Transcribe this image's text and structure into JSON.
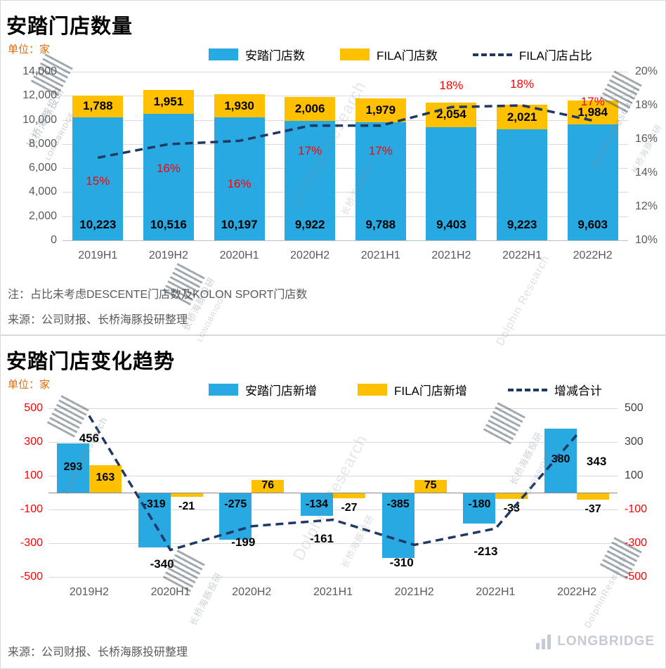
{
  "chart_data": [
    {
      "id": "store-count",
      "type": "bar",
      "variant": "stacked-with-line",
      "title": "安踏门店数量",
      "unit_label": "单位：家",
      "categories": [
        "2019H1",
        "2019H2",
        "2020H1",
        "2020H2",
        "2021H1",
        "2021H2",
        "2022H1",
        "2022H2"
      ],
      "series": [
        {
          "name": "安踏门店数",
          "type": "bar",
          "color": "#29A9E1",
          "values": [
            10223,
            10516,
            10197,
            9922,
            9788,
            9403,
            9223,
            9603
          ],
          "labels": [
            "10,223",
            "10,516",
            "10,197",
            "9,922",
            "9,788",
            "9,403",
            "9,223",
            "9,603"
          ],
          "label_color": "#000000"
        },
        {
          "name": "FILA门店数",
          "type": "bar",
          "color": "#FFC000",
          "values": [
            1788,
            1951,
            1930,
            2006,
            1979,
            2054,
            2021,
            1984
          ],
          "labels": [
            "1,788",
            "1,951",
            "1,930",
            "2,006",
            "1,979",
            "2,054",
            "2,021",
            "1,984"
          ],
          "label_color": "#000000"
        },
        {
          "name": "FILA门店占比",
          "type": "line",
          "axis": "right",
          "dash": true,
          "color": "#1F3864",
          "values": [
            14.9,
            15.7,
            15.9,
            16.8,
            16.8,
            17.9,
            18.0,
            17.1
          ],
          "labels": [
            "15%",
            "16%",
            "16%",
            "17%",
            "17%",
            "18%",
            "18%",
            "17%"
          ],
          "label_color": "#FF0000"
        }
      ],
      "left_axis": {
        "min": 0,
        "max": 14000,
        "ticks": [
          "14,000",
          "12,000",
          "10,000",
          "8,000",
          "6,000",
          "4,000",
          "2,000",
          "0"
        ],
        "color": "#595959"
      },
      "right_axis": {
        "min": 10,
        "max": 20,
        "ticks": [
          "20%",
          "18%",
          "16%",
          "14%",
          "12%",
          "10%"
        ],
        "color": "#595959"
      },
      "grid": true,
      "legend_position": "top",
      "note": "注：占比未考虑DESCENTE门店数及KOLON SPORT门店数",
      "source": "来源：公司财报、长桥海豚投研整理"
    },
    {
      "id": "store-change",
      "type": "bar",
      "variant": "grouped-with-line",
      "title": "安踏门店变化趋势",
      "unit_label": "单位：家",
      "categories": [
        "2019H2",
        "2020H1",
        "2020H2",
        "2021H1",
        "2021H2",
        "2022H1",
        "2022H2"
      ],
      "series": [
        {
          "name": "安踏门店新增",
          "type": "bar",
          "color": "#29A9E1",
          "values": [
            293,
            -319,
            -275,
            -134,
            -385,
            -180,
            380
          ],
          "labels": [
            "293",
            "-319",
            "-275",
            "-134",
            "-385",
            "-180",
            "380"
          ],
          "label_color": "#000000"
        },
        {
          "name": "FILA门店新增",
          "type": "bar",
          "color": "#FFC000",
          "values": [
            163,
            -21,
            76,
            -27,
            75,
            -33,
            -37
          ],
          "labels": [
            "163",
            "-21",
            "76",
            "-27",
            "75",
            "-33",
            "-37"
          ],
          "label_color": "#000000"
        },
        {
          "name": "增减合计",
          "type": "line",
          "dash": true,
          "color": "#1F3864",
          "values": [
            456,
            -340,
            -199,
            -161,
            -310,
            -213,
            343
          ],
          "labels": [
            "456",
            "-340",
            "-199",
            "-161",
            "-310",
            "-213",
            "343"
          ],
          "label_color": "#000000"
        }
      ],
      "left_axis": {
        "min": -500,
        "max": 500,
        "ticks": [
          "500",
          "300",
          "100",
          "-100",
          "-300",
          "-500"
        ],
        "color": "#FF0000"
      },
      "right_axis": {
        "min": -500,
        "max": 500,
        "ticks": [
          "500",
          "300",
          "100",
          "-100",
          "-300",
          "-500"
        ],
        "color": "#404040",
        "negative_color": "#FF0000"
      },
      "grid": true,
      "legend_position": "top",
      "source": "来源：公司财报、长桥海豚投研整理"
    }
  ],
  "watermarks": {
    "texts": [
      "Dolphin Research",
      "DolphinResearch",
      "长桥海豚投研",
      "LONGBRIDGE"
    ]
  },
  "footer": {
    "logo": "LONGBRIDGE"
  }
}
